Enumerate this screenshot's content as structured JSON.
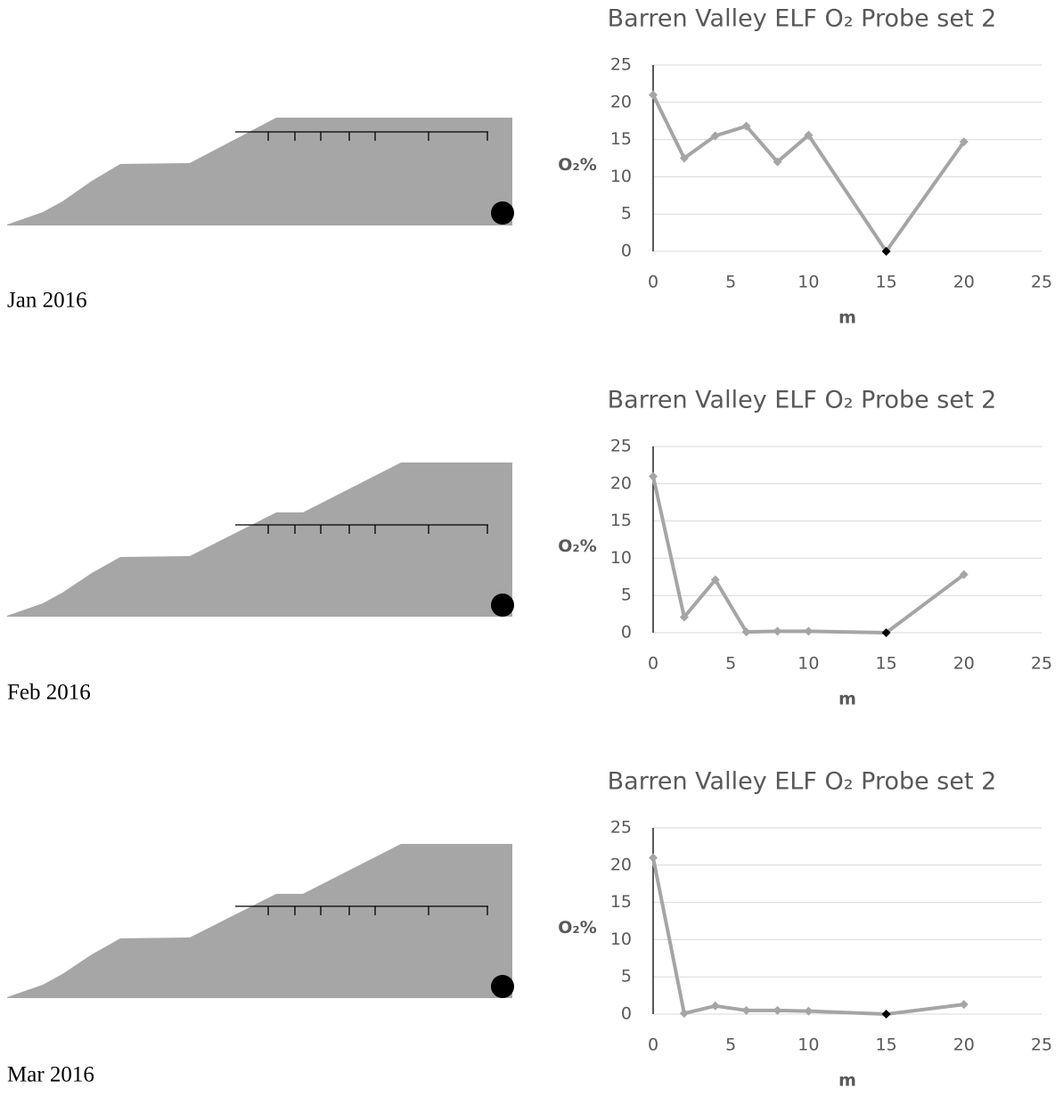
{
  "chart_data": [
    {
      "type": "line",
      "title": "Barren Valley ELF O₂ Probe set  2",
      "x_label": "m",
      "y_label": "O₂%",
      "x": [
        0,
        2,
        4,
        6,
        8,
        10,
        15,
        20
      ],
      "series": [
        {
          "color": "#a5a5a5",
          "values": [
            21,
            12.5,
            15.5,
            16.8,
            12,
            15.6,
            0,
            14.7
          ],
          "marker_colors": [
            "#a5a5a5",
            "#a5a5a5",
            "#a5a5a5",
            "#a5a5a5",
            "#a5a5a5",
            "#a5a5a5",
            "#000000",
            "#a5a5a5"
          ]
        }
      ],
      "xlim": [
        0,
        25
      ],
      "xticks": [
        0,
        5,
        10,
        15,
        20,
        25
      ],
      "ylim": [
        0,
        25
      ],
      "yticks": [
        0,
        5,
        10,
        15,
        20,
        25
      ],
      "grid": true
    },
    {
      "type": "line",
      "title": "Barren Valley ELF O₂ Probe set  2",
      "x_label": "m",
      "y_label": "O₂%",
      "x": [
        0,
        2,
        4,
        6,
        8,
        10,
        15,
        20
      ],
      "series": [
        {
          "color": "#a5a5a5",
          "values": [
            21,
            2.1,
            7.1,
            0.1,
            0.2,
            0.2,
            0,
            7.8
          ],
          "marker_colors": [
            "#a5a5a5",
            "#a5a5a5",
            "#a5a5a5",
            "#a5a5a5",
            "#a5a5a5",
            "#a5a5a5",
            "#000000",
            "#a5a5a5"
          ]
        }
      ],
      "xlim": [
        0,
        25
      ],
      "xticks": [
        0,
        5,
        10,
        15,
        20,
        25
      ],
      "ylim": [
        0,
        25
      ],
      "yticks": [
        0,
        5,
        10,
        15,
        20,
        25
      ],
      "grid": true
    },
    {
      "type": "line",
      "title": "Barren Valley ELF O₂ Probe set  2",
      "x_label": "m",
      "y_label": "O₂%",
      "x": [
        0,
        2,
        4,
        6,
        8,
        10,
        15,
        20
      ],
      "series": [
        {
          "color": "#a5a5a5",
          "values": [
            21,
            0.1,
            1.1,
            0.5,
            0.5,
            0.4,
            0,
            1.3
          ],
          "marker_colors": [
            "#a5a5a5",
            "#a5a5a5",
            "#a5a5a5",
            "#a5a5a5",
            "#a5a5a5",
            "#a5a5a5",
            "#000000",
            "#a5a5a5"
          ]
        }
      ],
      "xlim": [
        0,
        25
      ],
      "xticks": [
        0,
        5,
        10,
        15,
        20,
        25
      ],
      "ylim": [
        0,
        25
      ],
      "yticks": [
        0,
        5,
        10,
        15,
        20,
        25
      ],
      "grid": true
    }
  ],
  "date_labels": [
    "Jan 2016",
    "Feb 2016",
    "Mar 2016"
  ]
}
